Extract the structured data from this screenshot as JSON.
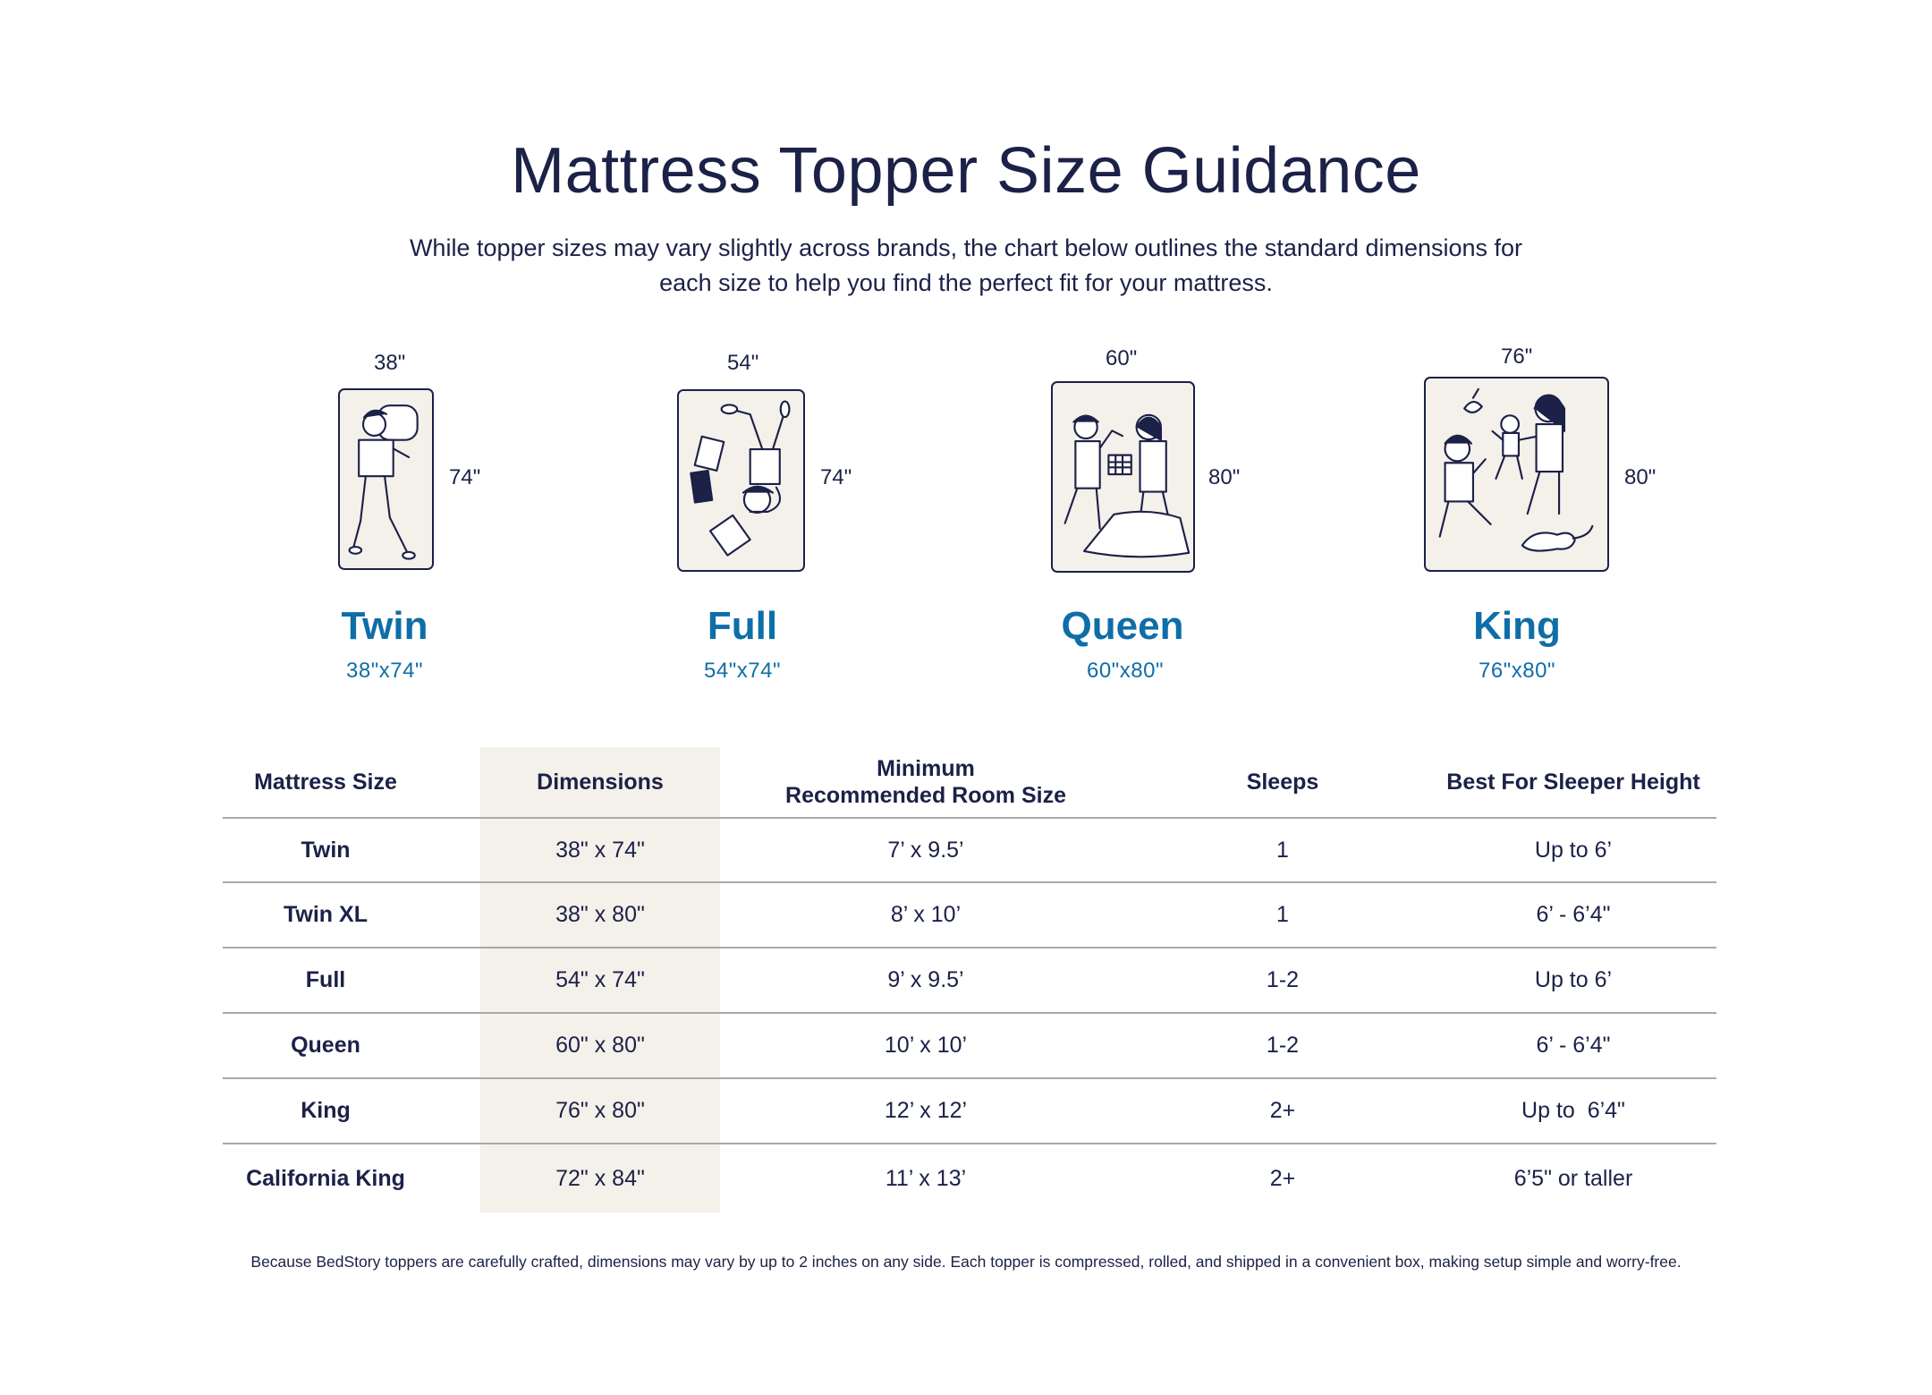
{
  "header": {
    "title": "Mattress Topper Size Guidance",
    "subtitle_line1": "While topper sizes may vary slightly across brands, the chart below outlines the standard dimensions for",
    "subtitle_line2": "each size to help you find the perfect fit for your mattress."
  },
  "sizes": [
    {
      "name": "Twin",
      "width_label": "38\"",
      "length_label": "74\"",
      "dims": "38\"x74\"",
      "illustration": "child-sleeping-icon"
    },
    {
      "name": "Full",
      "width_label": "54\"",
      "length_label": "74\"",
      "dims": "54\"x74\"",
      "illustration": "child-reading-icon"
    },
    {
      "name": "Queen",
      "width_label": "60\"",
      "length_label": "80\"",
      "dims": "60\"x80\"",
      "illustration": "couple-sleeping-icon"
    },
    {
      "name": "King",
      "width_label": "76\"",
      "length_label": "80\"",
      "dims": "76\"x80\"",
      "illustration": "family-with-cat-icon"
    }
  ],
  "table": {
    "headers": {
      "size": "Mattress Size",
      "dimensions": "Dimensions",
      "room_line1": "Minimum",
      "room_line2": "Recommended Room Size",
      "sleeps": "Sleeps",
      "height": "Best For Sleeper Height"
    },
    "rows": [
      {
        "size": "Twin",
        "dimensions": "38\" x 74\"",
        "room": "7’ x 9.5’",
        "sleeps": "1",
        "height": "Up to 6’"
      },
      {
        "size": "Twin XL",
        "dimensions": "38\" x 80\"",
        "room": "8’ x 10’",
        "sleeps": "1",
        "height": "6’ - 6’4\""
      },
      {
        "size": "Full",
        "dimensions": "54\" x 74\"",
        "room": "9’ x 9.5’",
        "sleeps": "1-2",
        "height": "Up to 6’"
      },
      {
        "size": "Queen",
        "dimensions": "60\" x 80\"",
        "room": "10’ x 10’",
        "sleeps": "1-2",
        "height": "6’ - 6’4\""
      },
      {
        "size": "King",
        "dimensions": "76\" x 80\"",
        "room": "12’ x 12’",
        "sleeps": "2+",
        "height": "Up to  6’4\""
      },
      {
        "size": "California King",
        "dimensions": "72\" x 84\"",
        "room": "11’ x 13’",
        "sleeps": "2+",
        "height": "6’5\" or taller"
      }
    ]
  },
  "footnote": "Because BedStory toppers are carefully crafted, dimensions may vary by up to 2 inches on any side. Each topper is compressed, rolled, and shipped in a convenient box, making setup simple and worry-free.",
  "colors": {
    "navy": "#1b2147",
    "accent_blue": "#0f6ea8",
    "bed_fill": "#f4f0ea",
    "highlight_col": "#f4f0ea",
    "rule": "#a9a9a9"
  }
}
